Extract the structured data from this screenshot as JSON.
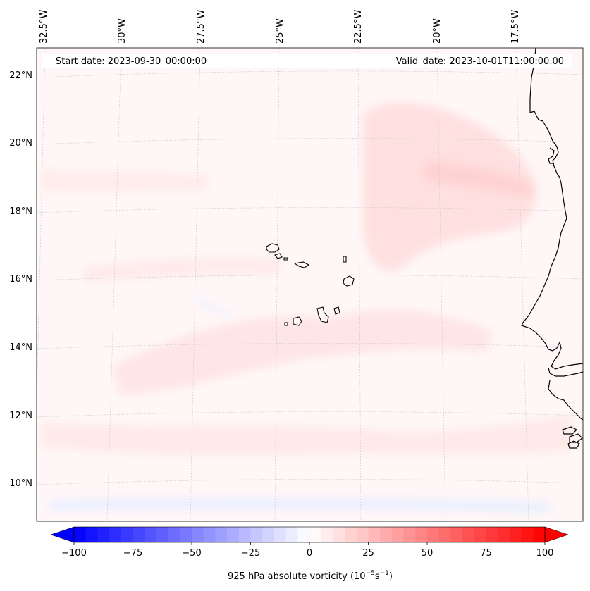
{
  "map": {
    "start_date_label": "Start date: 2023-09-30_00:00:00",
    "valid_date_label": "Valid_date: 2023-10-01T11:00:00.00",
    "lon_labels": [
      "32.5°W",
      "30°W",
      "27.5°W",
      "25°W",
      "22.5°W",
      "20°W",
      "17.5°W"
    ],
    "lat_labels": [
      "22°N",
      "20°N",
      "18°N",
      "16°N",
      "14°N",
      "12°N",
      "10°N"
    ],
    "extent": {
      "lon_min": -32.9,
      "lon_max": -15.4,
      "lat_min": 8.9,
      "lat_max": 22.8
    },
    "field": "925 hPa absolute vorticity",
    "features": [
      "Cabo Verde islands",
      "West African coastline (Mauritania, Senegal, Gambia, Guinea-Bissau)"
    ]
  },
  "colorbar": {
    "label_prefix": "925 hPa absolute vorticity (10",
    "label_exp1": "−5",
    "label_mid": "s",
    "label_exp2": "−1",
    "label_suffix": ")",
    "vmin": -100,
    "vmax": 100,
    "tick_values": [
      -100,
      -75,
      -50,
      -25,
      0,
      25,
      50,
      75,
      100
    ],
    "tick_labels": [
      "−100",
      "−75",
      "−50",
      "−25",
      "0",
      "25",
      "50",
      "75",
      "100"
    ],
    "extend": "both",
    "colormap": "bwr",
    "min_color": "#0000ff",
    "mid_color": "#ffffff",
    "max_color": "#ff0000"
  },
  "colors": {
    "background_field": "#fff7f7",
    "positive_tint": "#ffe2e2",
    "negative_tint": "#eef1ff",
    "coastline": "#000000",
    "gridline": "#c8c8c8"
  }
}
